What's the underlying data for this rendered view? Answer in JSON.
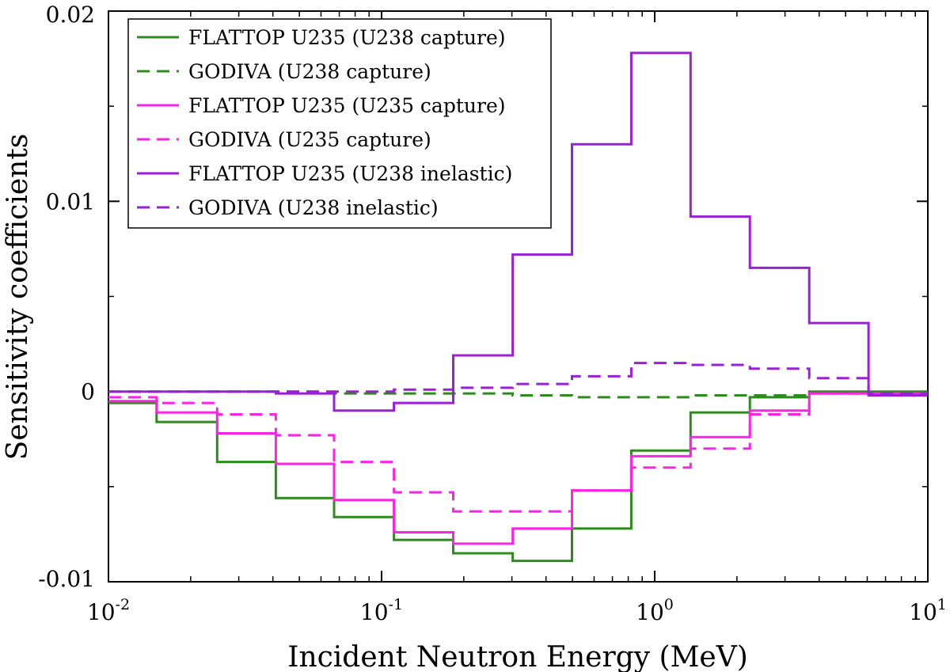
{
  "chart_data": {
    "type": "line",
    "step": true,
    "xscale": "log",
    "xlim": [
      0.01,
      10
    ],
    "ylim": [
      -0.01,
      0.02
    ],
    "xlabel": "Incident Neutron Energy (MeV)",
    "ylabel": "Sensitivity coefficients",
    "x_ticks": [
      {
        "value": 0.01,
        "base": "10",
        "exp": "-2"
      },
      {
        "value": 0.1,
        "base": "10",
        "exp": "-1"
      },
      {
        "value": 1,
        "base": "10",
        "exp": "0"
      },
      {
        "value": 10,
        "base": "10",
        "exp": "1"
      }
    ],
    "y_ticks": [
      {
        "value": -0.01,
        "label": "-0.01"
      },
      {
        "value": 0,
        "label": "0"
      },
      {
        "value": 0.01,
        "label": "0.01"
      },
      {
        "value": 0.02,
        "label": "0.02"
      }
    ],
    "y_minor_ticks": [
      -0.005,
      0.005,
      0.015
    ],
    "bin_edges": [
      0.01,
      0.015,
      0.025,
      0.041,
      0.067,
      0.111,
      0.183,
      0.302,
      0.498,
      0.821,
      1.353,
      2.231,
      3.679,
      6.065,
      10
    ],
    "legend_position": "top-left",
    "series": [
      {
        "name": "FLATTOP U235 (U238 capture)",
        "color": "#2e8b1e",
        "dash": "solid",
        "values": [
          -0.0006,
          -0.0016,
          -0.0037,
          -0.0056,
          -0.0066,
          -0.0078,
          -0.0085,
          -0.0089,
          -0.0072,
          -0.0031,
          -0.0011,
          -0.0003,
          0.0,
          0.0
        ]
      },
      {
        "name": "GODIVA (U238 capture)",
        "color": "#2e8b1e",
        "dash": "dashed",
        "values": [
          0.0,
          0.0,
          0.0,
          0.0,
          -0.0001,
          -0.0001,
          -0.0001,
          -0.0002,
          -0.0003,
          -0.0003,
          -0.0002,
          -0.0002,
          -0.0001,
          -0.0001
        ]
      },
      {
        "name": "FLATTOP U235 (U235 capture)",
        "color": "#ff22e6",
        "dash": "solid",
        "values": [
          -0.0005,
          -0.0011,
          -0.0022,
          -0.0038,
          -0.0057,
          -0.0074,
          -0.008,
          -0.0072,
          -0.0052,
          -0.0034,
          -0.0024,
          -0.001,
          -0.0001,
          -0.0001
        ]
      },
      {
        "name": "GODIVA (U235 capture)",
        "color": "#ff22e6",
        "dash": "dashed",
        "values": [
          -0.0003,
          -0.0006,
          -0.0012,
          -0.0023,
          -0.0037,
          -0.0053,
          -0.0063,
          -0.0063,
          -0.0052,
          -0.004,
          -0.003,
          -0.0012,
          -0.0001,
          -0.0001
        ]
      },
      {
        "name": "FLATTOP U235 (U238 inelastic)",
        "color": "#9a1fd6",
        "dash": "solid",
        "values": [
          0.0,
          0.0,
          0.0,
          -0.0001,
          -0.001,
          -0.0006,
          0.0019,
          0.0072,
          0.013,
          0.0178,
          0.0092,
          0.0065,
          0.0036,
          -0.0002
        ]
      },
      {
        "name": "GODIVA (U238 inelastic)",
        "color": "#9a1fd6",
        "dash": "dashed",
        "values": [
          0.0,
          0.0,
          0.0,
          0.0,
          0.0,
          0.0001,
          0.0002,
          0.0004,
          0.0008,
          0.0015,
          0.0014,
          0.0012,
          0.0007,
          -0.0001
        ]
      }
    ]
  }
}
